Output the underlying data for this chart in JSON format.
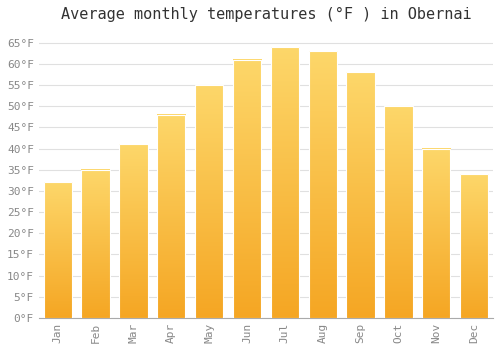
{
  "title": "Average monthly temperatures (°F ) in Obernai",
  "months": [
    "Jan",
    "Feb",
    "Mar",
    "Apr",
    "May",
    "Jun",
    "Jul",
    "Aug",
    "Sep",
    "Oct",
    "Nov",
    "Dec"
  ],
  "values": [
    32,
    35,
    41,
    48,
    55,
    61,
    64,
    63,
    58,
    50,
    40,
    34
  ],
  "bar_color_bottom": "#F5A623",
  "bar_color_top": "#FDD76A",
  "ylim": [
    0,
    68
  ],
  "yticks": [
    0,
    5,
    10,
    15,
    20,
    25,
    30,
    35,
    40,
    45,
    50,
    55,
    60,
    65
  ],
  "background_color": "#FFFFFF",
  "plot_bg_color": "#FFFFFF",
  "grid_color": "#E0E0E0",
  "title_fontsize": 11,
  "tick_fontsize": 8,
  "tick_color": "#888888",
  "font_family": "monospace",
  "bar_width": 0.75
}
